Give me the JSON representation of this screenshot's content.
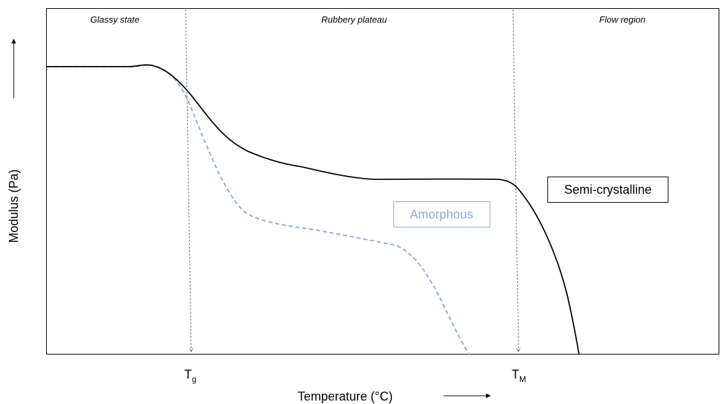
{
  "diagram": {
    "regions": [
      "Glassy state",
      "Rubbery plateau",
      "Flow region"
    ],
    "y_axis_label": "Modulus (Pa)",
    "x_axis_label": "Temperature (°C)",
    "markers": [
      {
        "main": "T",
        "sub": "g"
      },
      {
        "main": "T",
        "sub": "M"
      }
    ],
    "curves": [
      {
        "name": "Semi-crystalline",
        "style": "solid",
        "color": "#000000"
      },
      {
        "name": "Amorphous",
        "style": "dashed",
        "color": "#8eaadb"
      }
    ]
  }
}
